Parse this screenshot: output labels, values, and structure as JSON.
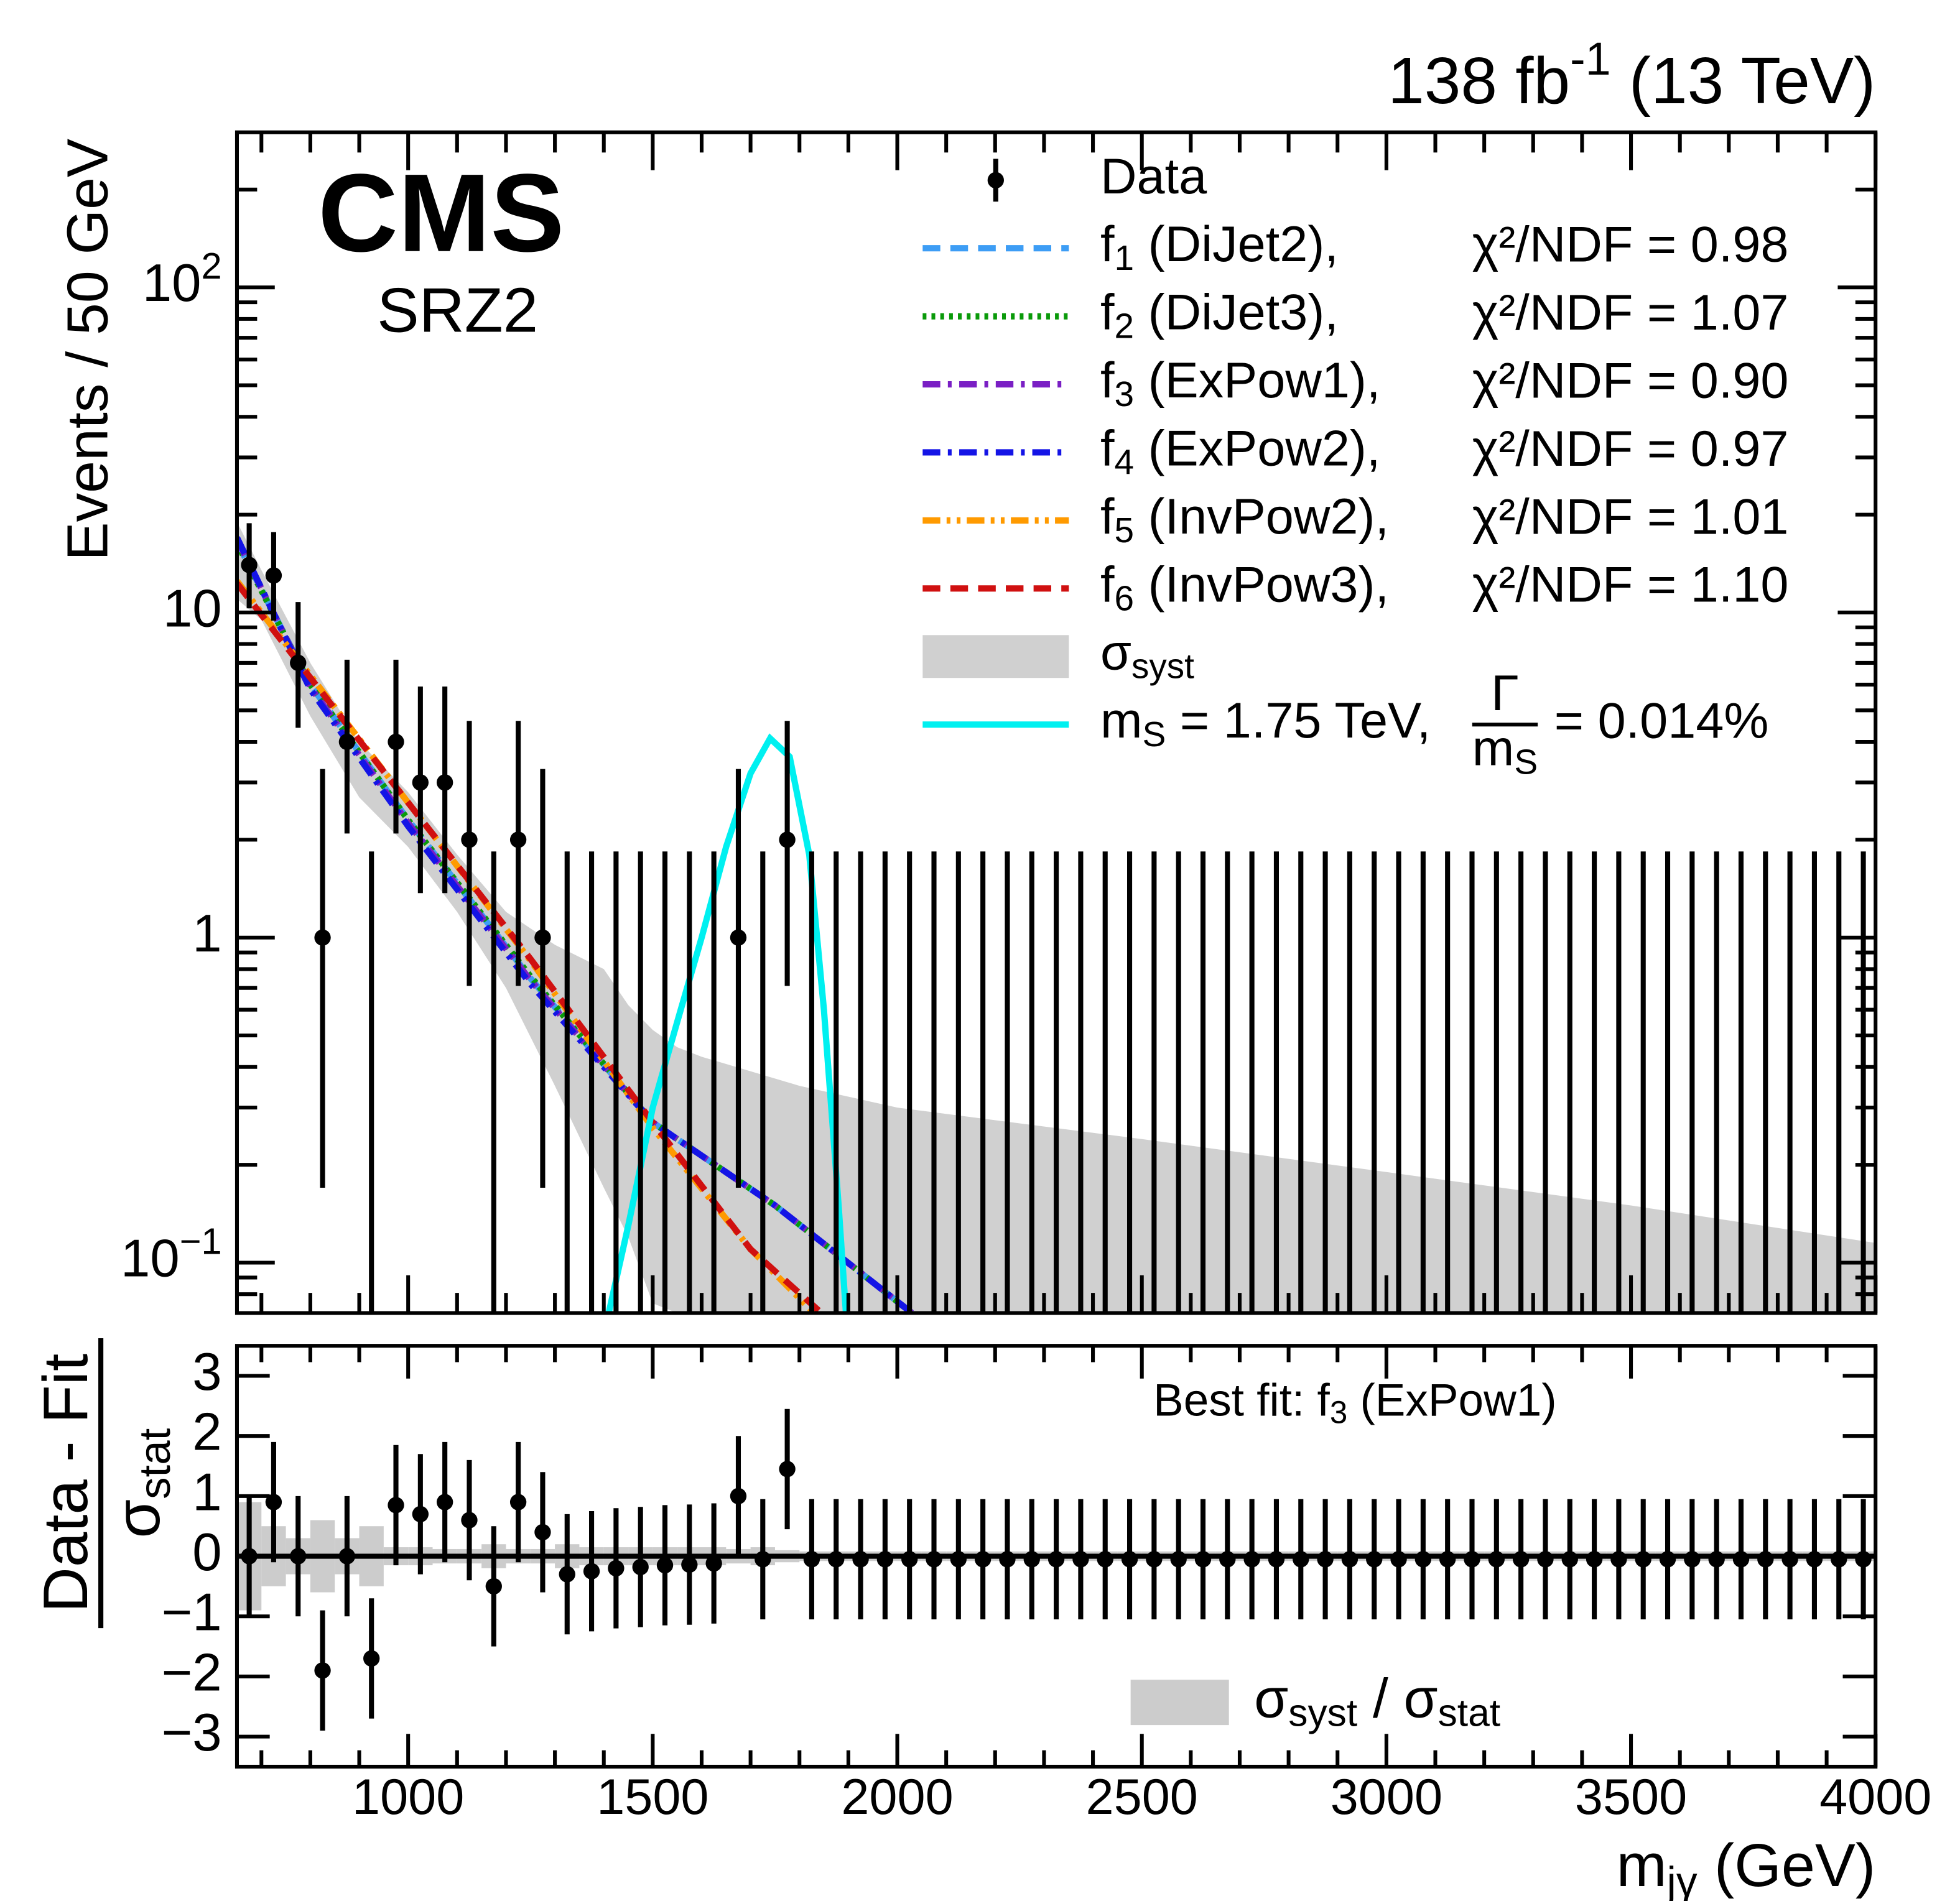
{
  "chart_data": [
    {
      "type": "errorbar",
      "title": [
        "138 fb",
        {
          "sup": "-1"
        },
        " (13 TeV)"
      ],
      "experiment": "CMS",
      "region": "SRZ2",
      "y_label": "Events / 50 GeV",
      "log_y": true,
      "legend": "upper right",
      "xlim": [
        650,
        4000
      ],
      "xticks": [
        1000,
        1500,
        2000,
        2500,
        3000,
        3500,
        4000
      ],
      "xminorticks": [
        700,
        800,
        900,
        1100,
        1200,
        1300,
        1400,
        1600,
        1700,
        1800,
        1900,
        2100,
        2200,
        2300,
        2400,
        2600,
        2700,
        2800,
        2900,
        3100,
        3200,
        3300,
        3400,
        3600,
        3700,
        3800,
        3900
      ],
      "ylim": [
        0.07,
        300
      ],
      "yticks": [
        {
          "value": 0.1,
          "label": [
            "10",
            {
              "sup": "−1"
            }
          ]
        },
        1,
        10,
        {
          "value": 100,
          "label": [
            "10",
            {
              "sup": "2"
            }
          ]
        }
      ],
      "yminorticks": [
        0.08,
        0.09,
        0.2,
        0.3,
        0.4,
        0.5,
        0.6,
        0.7,
        0.8,
        0.9,
        2,
        3,
        4,
        5,
        6,
        7,
        8,
        9,
        20,
        30,
        40,
        50,
        60,
        70,
        80,
        90,
        200
      ],
      "series": [
        {
          "name": "Data",
          "kind": "points",
          "color": "#000000",
          "x": [
            675,
            725,
            775,
            825,
            875,
            925,
            975,
            1025,
            1075,
            1125,
            1175,
            1225,
            1275,
            1325,
            1375,
            1425,
            1475,
            1525,
            1575,
            1625,
            1675,
            1725,
            1775,
            1825,
            1875,
            1925,
            1975,
            2025,
            2075,
            2125,
            2175,
            2225,
            2275,
            2325,
            2375,
            2425,
            2475,
            2525,
            2575,
            2625,
            2675,
            2725,
            2775,
            2825,
            2875,
            2925,
            2975,
            3025,
            3075,
            3125,
            3175,
            3225,
            3275,
            3325,
            3375,
            3425,
            3475,
            3525,
            3575,
            3625,
            3675,
            3725,
            3775,
            3825,
            3875,
            3925,
            3975
          ],
          "values": [
            14,
            13,
            7,
            1,
            4,
            0,
            4,
            3,
            3,
            2,
            0,
            2,
            1,
            0,
            0,
            0,
            0,
            0,
            0,
            0,
            1,
            0,
            2,
            0,
            0,
            0,
            0,
            0,
            0,
            0,
            0,
            0,
            0,
            0,
            0,
            0,
            0,
            0,
            0,
            0,
            0,
            0,
            0,
            0,
            0,
            0,
            0,
            0,
            0,
            0,
            0,
            0,
            0,
            0,
            0,
            0,
            0,
            0,
            0,
            0,
            0,
            0,
            0,
            0,
            0,
            0,
            0
          ],
          "errors_low": [
            3.7,
            3.56,
            2.58,
            0.83,
            1.91,
            0,
            1.91,
            1.63,
            1.63,
            1.29,
            0,
            1.29,
            0.83,
            0,
            0,
            0,
            0,
            0,
            0,
            0,
            0.83,
            0,
            1.29,
            0,
            0,
            0,
            0,
            0,
            0,
            0,
            0,
            0,
            0,
            0,
            0,
            0,
            0,
            0,
            0,
            0,
            0,
            0,
            0,
            0,
            0,
            0,
            0,
            0,
            0,
            0,
            0,
            0,
            0,
            0,
            0,
            0,
            0,
            0,
            0,
            0,
            0,
            0,
            0,
            0,
            0,
            0,
            0
          ],
          "errors_high": [
            4.82,
            4.67,
            3.77,
            2.3,
            3.16,
            1.84,
            3.16,
            2.92,
            2.92,
            2.64,
            1.84,
            2.64,
            2.3,
            1.84,
            1.84,
            1.84,
            1.84,
            1.84,
            1.84,
            1.84,
            2.3,
            1.84,
            2.64,
            1.84,
            1.84,
            1.84,
            1.84,
            1.84,
            1.84,
            1.84,
            1.84,
            1.84,
            1.84,
            1.84,
            1.84,
            1.84,
            1.84,
            1.84,
            1.84,
            1.84,
            1.84,
            1.84,
            1.84,
            1.84,
            1.84,
            1.84,
            1.84,
            1.84,
            1.84,
            1.84,
            1.84,
            1.84,
            1.84,
            1.84,
            1.84,
            1.84,
            1.84,
            1.84,
            1.84,
            1.84,
            1.84,
            1.84,
            1.84,
            1.84,
            1.84,
            1.84,
            1.84
          ]
        },
        {
          "name": [
            "f",
            {
              "sub": "1"
            },
            " (DiJet2),"
          ],
          "chi2_label": "χ²/NDF = 0.98",
          "kind": "line",
          "color": "#3d9df5",
          "dash": "dashed",
          "x": [
            650,
            800,
            1000,
            1250,
            1500,
            1750,
            2030
          ],
          "values": [
            16.5,
            6.0,
            2.3,
            0.75,
            0.27,
            0.15,
            0.07
          ]
        },
        {
          "name": [
            "f",
            {
              "sub": "2"
            },
            " (DiJet3),"
          ],
          "chi2_label": "χ²/NDF = 1.07",
          "kind": "line",
          "color": "#0a9a0a",
          "dash": "dotted",
          "x": [
            650,
            800,
            1000,
            1250,
            1500,
            1750,
            2030
          ],
          "values": [
            16.3,
            6.0,
            2.3,
            0.76,
            0.27,
            0.15,
            0.07
          ]
        },
        {
          "name": [
            "f",
            {
              "sub": "3"
            },
            " (ExPow1),"
          ],
          "chi2_label": "χ²/NDF = 0.90",
          "kind": "line",
          "color": "#7a1fc4",
          "dash": "dashdot",
          "x": [
            650,
            800,
            1000,
            1250,
            1500,
            1750,
            2030
          ],
          "values": [
            16.8,
            5.9,
            2.25,
            0.74,
            0.27,
            0.15,
            0.07
          ]
        },
        {
          "name": [
            "f",
            {
              "sub": "4"
            },
            " (ExPow2),"
          ],
          "chi2_label": "χ²/NDF = 0.97",
          "kind": "line",
          "color": "#1414e6",
          "dash": "dashdot",
          "x": [
            650,
            800,
            1000,
            1250,
            1500,
            1750,
            2030
          ],
          "values": [
            17,
            5.8,
            2.2,
            0.72,
            0.27,
            0.15,
            0.07
          ]
        },
        {
          "name": [
            "f",
            {
              "sub": "5"
            },
            " (InvPow2),"
          ],
          "chi2_label": "χ²/NDF = 1.01",
          "kind": "line",
          "color": "#ff9a00",
          "dash": "dashdotdot",
          "x": [
            650,
            800,
            1000,
            1250,
            1500,
            1700,
            1830
          ],
          "values": [
            12.5,
            6.4,
            2.6,
            0.85,
            0.26,
            0.11,
            0.07
          ]
        },
        {
          "name": [
            "f",
            {
              "sub": "6"
            },
            " (InvPow3),"
          ],
          "chi2_label": "χ²/NDF = 1.10",
          "kind": "line",
          "color": "#d01010",
          "dash": "dashed",
          "x": [
            650,
            800,
            1000,
            1250,
            1500,
            1700,
            1845
          ],
          "values": [
            12.3,
            6.3,
            2.6,
            0.86,
            0.27,
            0.11,
            0.07
          ]
        },
        {
          "name": [
            "σ",
            {
              "sub": "syst"
            }
          ],
          "kind": "band",
          "color": "#d0d0d0",
          "x": [
            650,
            700,
            800,
            900,
            1000,
            1100,
            1200,
            1300,
            1400,
            1450,
            1500,
            1550,
            1600,
            1800,
            2000,
            2500,
            3000,
            3500,
            4000
          ],
          "upper": [
            19,
            13.5,
            7,
            4,
            2.8,
            1.8,
            1.2,
            0.95,
            0.8,
            0.62,
            0.52,
            0.46,
            0.43,
            0.35,
            0.3,
            0.24,
            0.19,
            0.15,
            0.115
          ],
          "lower": [
            11,
            9.5,
            4.8,
            2.7,
            1.9,
            1.2,
            0.7,
            0.35,
            0.17,
            0.12,
            0.075,
            0.07,
            0.07,
            0.07,
            0.07,
            0.07,
            0.07,
            0.07,
            0.07
          ]
        },
        {
          "name": [
            "m",
            {
              "sub": "S"
            },
            " = 1.75 TeV,"
          ],
          "width_label": {
            "numerator": "Γ",
            "denominator": [
              "m",
              {
                "sub": "S"
              }
            ],
            "text": " = 0.014%"
          },
          "kind": "line",
          "color": "#00f0f0",
          "dash": "solid",
          "x": [
            1410,
            1450,
            1500,
            1550,
            1600,
            1650,
            1700,
            1740,
            1780,
            1820,
            1850,
            1880,
            1895
          ],
          "values": [
            0.07,
            0.13,
            0.3,
            0.55,
            1.0,
            1.9,
            3.2,
            4.1,
            3.6,
            1.8,
            0.6,
            0.15,
            0.07
          ]
        }
      ]
    },
    {
      "type": "errorbar",
      "y_label": {
        "numerator": "Data - Fit",
        "denominator": [
          "σ",
          {
            "sub": "stat"
          }
        ]
      },
      "x_label": [
        "m",
        {
          "sub": "jγ"
        },
        " (GeV)"
      ],
      "annotation": [
        "Best fit: f",
        {
          "sub": "3"
        },
        " (ExPow1)"
      ],
      "legend": "lower center",
      "xlim": [
        650,
        4000
      ],
      "xticks": [
        1000,
        1500,
        2000,
        2500,
        3000,
        3500,
        4000
      ],
      "xminorticks": [
        700,
        800,
        900,
        1100,
        1200,
        1300,
        1400,
        1600,
        1700,
        1800,
        1900,
        2100,
        2200,
        2300,
        2400,
        2600,
        2700,
        2800,
        2900,
        3100,
        3200,
        3300,
        3400,
        3600,
        3700,
        3800,
        3900
      ],
      "ylim": [
        -3.5,
        3.5
      ],
      "yticks": [
        {
          "value": -3,
          "label": "−3"
        },
        {
          "value": -2,
          "label": "−2"
        },
        {
          "value": -1,
          "label": "−1"
        },
        0,
        1,
        2,
        3
      ],
      "reference_line": 0,
      "series": [
        {
          "name": [
            "σ",
            {
              "sub": "syst"
            },
            " / σ",
            {
              "sub": "stat"
            }
          ],
          "kind": "bins_band",
          "color": "#cccccc",
          "x": [
            675,
            725,
            775,
            825,
            875,
            925,
            975,
            1025,
            1075,
            1125,
            1175,
            1225,
            1275,
            1325,
            1375,
            1425,
            1475,
            1525,
            1575,
            1625,
            1675,
            1725,
            1775,
            1825,
            1875,
            1925,
            1975,
            2025,
            2075,
            2125,
            2175,
            2225,
            2275,
            2325,
            2375,
            2425,
            2475,
            2525,
            2575,
            2625,
            2675,
            2725,
            2775,
            2825,
            2875,
            2925,
            2975,
            3025,
            3075,
            3125,
            3175,
            3225,
            3275,
            3325,
            3375,
            3425,
            3475,
            3525,
            3575,
            3625,
            3675,
            3725,
            3775,
            3825,
            3875,
            3925,
            3975
          ],
          "values": [
            0.9,
            0.5,
            0.3,
            0.6,
            0.3,
            0.5,
            0.15,
            0.15,
            0.12,
            0.12,
            0.2,
            0.12,
            0.12,
            0.2,
            0.15,
            0.15,
            0.15,
            0.15,
            0.15,
            0.15,
            0.12,
            0.15,
            0.1,
            0.08,
            0.08,
            0.08,
            0.08,
            0.08,
            0.08,
            0.08,
            0.08,
            0.08,
            0.08,
            0.08,
            0.08,
            0.08,
            0.08,
            0.08,
            0.08,
            0.08,
            0.08,
            0.08,
            0.08,
            0.08,
            0.08,
            0.08,
            0.08,
            0.08,
            0.08,
            0.08,
            0.08,
            0.08,
            0.08,
            0.08,
            0.08,
            0.08,
            0.08,
            0.08,
            0.08,
            0.08,
            0.08,
            0.08,
            0.08,
            0.08,
            0.08,
            0.08,
            0.08
          ]
        },
        {
          "kind": "points",
          "color": "#000000",
          "x": [
            675,
            725,
            775,
            825,
            875,
            925,
            975,
            1025,
            1075,
            1125,
            1175,
            1225,
            1275,
            1325,
            1375,
            1425,
            1475,
            1525,
            1575,
            1625,
            1675,
            1725,
            1775,
            1825,
            1875,
            1925,
            1975,
            2025,
            2075,
            2125,
            2175,
            2225,
            2275,
            2325,
            2375,
            2425,
            2475,
            2525,
            2575,
            2625,
            2675,
            2725,
            2775,
            2825,
            2875,
            2925,
            2975,
            3025,
            3075,
            3125,
            3175,
            3225,
            3275,
            3325,
            3375,
            3425,
            3475,
            3525,
            3575,
            3625,
            3675,
            3725,
            3775,
            3825,
            3875,
            3925,
            3975
          ],
          "values": [
            0,
            0.9,
            0,
            -1.9,
            0,
            -1.7,
            0.85,
            0.7,
            0.9,
            0.6,
            -0.5,
            0.9,
            0.4,
            -0.3,
            -0.25,
            -0.2,
            -0.18,
            -0.15,
            -0.14,
            -0.12,
            1.0,
            -0.05,
            1.45,
            -0.05,
            -0.05,
            -0.05,
            -0.05,
            -0.05,
            -0.05,
            -0.05,
            -0.05,
            -0.05,
            -0.05,
            -0.05,
            -0.05,
            -0.05,
            -0.05,
            -0.05,
            -0.05,
            -0.05,
            -0.05,
            -0.05,
            -0.05,
            -0.05,
            -0.05,
            -0.05,
            -0.05,
            -0.05,
            -0.05,
            -0.05,
            -0.05,
            -0.05,
            -0.05,
            -0.05,
            -0.05,
            -0.05,
            -0.05,
            -0.05,
            -0.05,
            -0.05,
            -0.05,
            -0.05,
            -0.05,
            -0.05,
            -0.05,
            -0.05,
            -0.05
          ],
          "errors": [
            1,
            1,
            1,
            1,
            1,
            1,
            1,
            1,
            1,
            1,
            1,
            1,
            1,
            1,
            1,
            1,
            1,
            1,
            1,
            1,
            1,
            1,
            1,
            1,
            1,
            1,
            1,
            1,
            1,
            1,
            1,
            1,
            1,
            1,
            1,
            1,
            1,
            1,
            1,
            1,
            1,
            1,
            1,
            1,
            1,
            1,
            1,
            1,
            1,
            1,
            1,
            1,
            1,
            1,
            1,
            1,
            1,
            1,
            1,
            1,
            1,
            1,
            1,
            1,
            1,
            1,
            1
          ]
        }
      ]
    }
  ]
}
